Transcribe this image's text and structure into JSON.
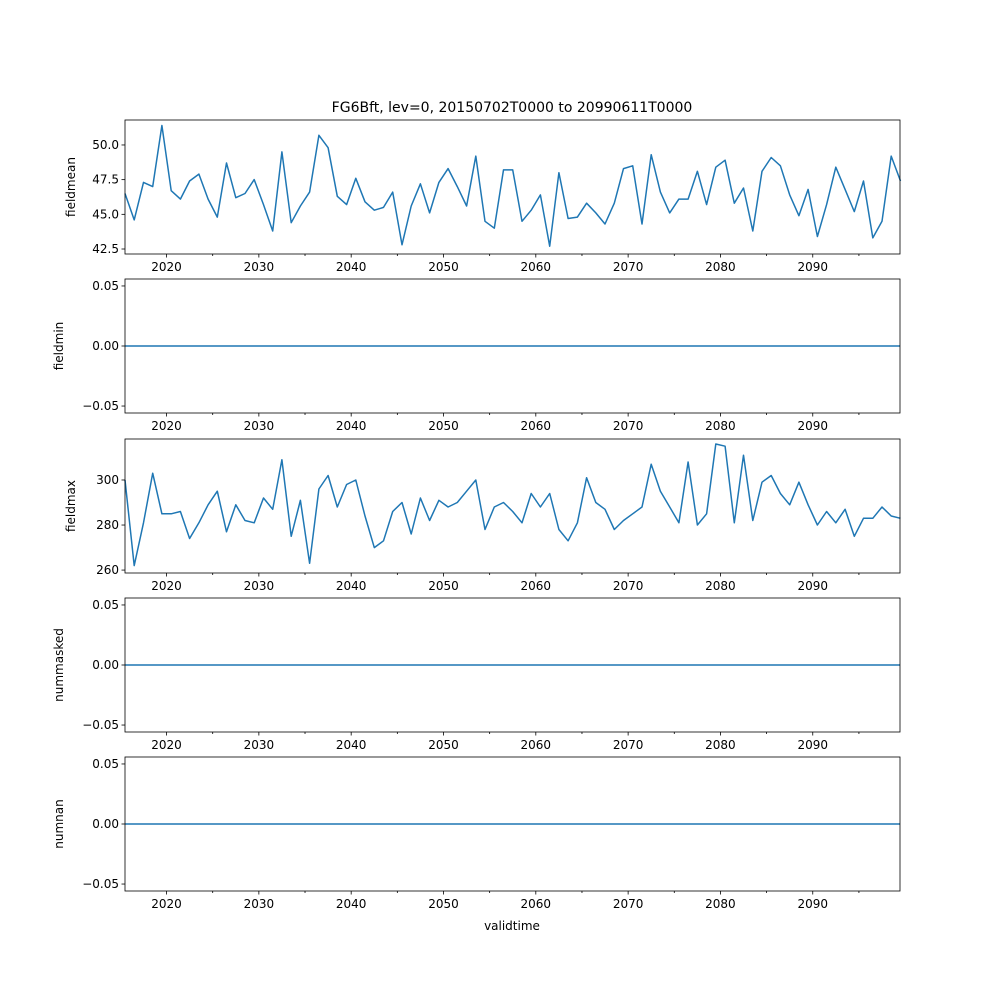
{
  "chart_data": {
    "type": "line",
    "title": "FG6Bft, lev=0, 20150702T0000 to 20990611T0000",
    "xlabel": "validtime",
    "xlim": [
      2015.5,
      2099.45
    ],
    "x_ticks": [
      2020,
      2030,
      2040,
      2050,
      2060,
      2070,
      2080,
      2090
    ],
    "x_start_year": 2015.5,
    "x_step": 1,
    "line_color": "#1f77b4",
    "panels": [
      {
        "ylabel": "fieldmean",
        "ylim": [
          42.14,
          51.8
        ],
        "y_ticks": [
          "42.5",
          "45.0",
          "47.5",
          "50.0"
        ],
        "values": [
          46.5,
          44.6,
          47.3,
          47.0,
          51.4,
          46.7,
          46.1,
          47.4,
          47.9,
          46.1,
          44.8,
          48.7,
          46.2,
          46.5,
          47.5,
          45.7,
          43.8,
          49.5,
          44.4,
          45.6,
          46.6,
          50.7,
          49.8,
          46.3,
          45.7,
          47.6,
          45.9,
          45.3,
          45.5,
          46.6,
          42.8,
          45.6,
          47.2,
          45.1,
          47.3,
          48.3,
          47.0,
          45.6,
          49.2,
          44.5,
          44.0,
          48.2,
          48.2,
          44.5,
          45.3,
          46.4,
          42.7,
          48.0,
          44.7,
          44.8,
          45.8,
          45.1,
          44.3,
          45.8,
          48.3,
          48.5,
          44.3,
          49.3,
          46.6,
          45.1,
          46.1,
          46.1,
          48.1,
          45.7,
          48.4,
          48.9,
          45.8,
          46.9,
          43.8,
          48.1,
          49.1,
          48.5,
          46.4,
          44.9,
          46.8,
          43.4,
          45.7,
          48.4,
          46.8,
          45.2,
          47.4,
          43.3,
          44.5,
          49.2,
          47.4
        ]
      },
      {
        "ylabel": "fieldmin",
        "ylim": [
          -0.0558,
          0.0558
        ],
        "y_ticks": [
          "−0.05",
          "0.00",
          "0.05"
        ],
        "constant": 0
      },
      {
        "ylabel": "fieldmax",
        "ylim": [
          258.7,
          318.2
        ],
        "y_ticks": [
          "260",
          "280",
          "300"
        ],
        "values": [
          300,
          262,
          281,
          303,
          285,
          285,
          286,
          274,
          281,
          289,
          295,
          277,
          289,
          282,
          281,
          292,
          287,
          309,
          275,
          291,
          263,
          296,
          302,
          288,
          298,
          300,
          284,
          270,
          273,
          286,
          290,
          276,
          292,
          282,
          291,
          288,
          290,
          295,
          300,
          278,
          288,
          290,
          286,
          281,
          294,
          288,
          294,
          278,
          273,
          281,
          301,
          290,
          287,
          278,
          282,
          285,
          288,
          307,
          295,
          288,
          281,
          308,
          280,
          285,
          316,
          315,
          281,
          311,
          282,
          299,
          302,
          294,
          289,
          299,
          289,
          280,
          286,
          281,
          287,
          275,
          283,
          283,
          288,
          284,
          283
        ]
      },
      {
        "ylabel": "nummasked",
        "ylim": [
          -0.0558,
          0.0558
        ],
        "y_ticks": [
          "−0.05",
          "0.00",
          "0.05"
        ],
        "constant": 0
      },
      {
        "ylabel": "numnan",
        "ylim": [
          -0.0558,
          0.0558
        ],
        "y_ticks": [
          "−0.05",
          "0.00",
          "0.05"
        ],
        "constant": 0
      }
    ]
  }
}
